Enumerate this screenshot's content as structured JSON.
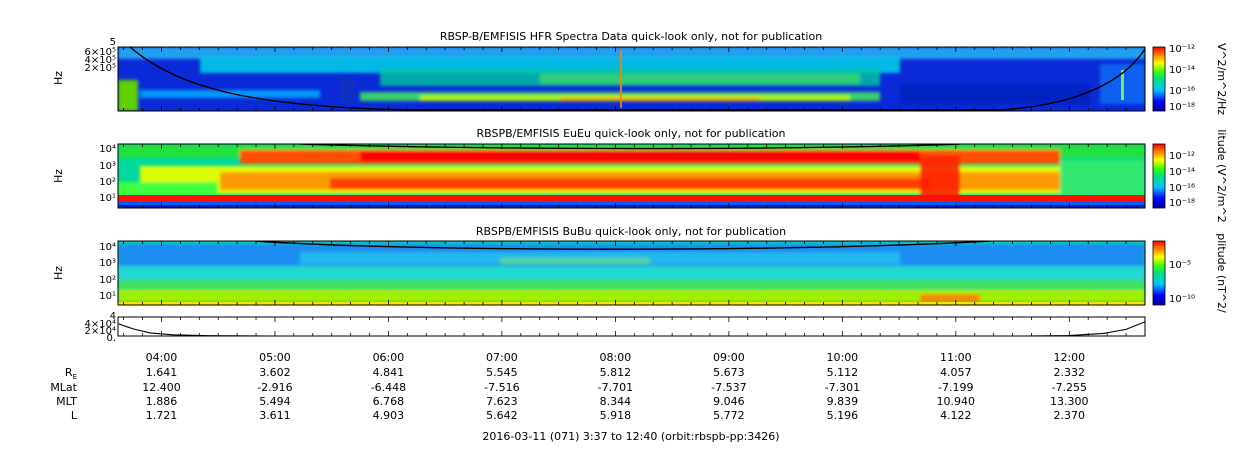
{
  "chart_data": [
    {
      "type": "heatmap",
      "title": "RBSP-B/EMFISIS  HFR Spectra Data quick-look only, not for publication",
      "ylabel": "Hz",
      "yticks": [
        "6×10⁵",
        "4×10⁵",
        "2×10⁵"
      ],
      "ytop_label": "5",
      "colorbar_label": "V^2/m^2/Hz",
      "colorbar_ticks": [
        "10⁻¹²",
        "10⁻¹⁴",
        "10⁻¹⁶",
        "10⁻¹⁸"
      ],
      "colorbar_range_exp": [
        -18,
        -12
      ]
    },
    {
      "type": "heatmap",
      "title": "RBSPB/EMFISIS  EuEu quick-look only, not for publication",
      "ylabel": "Hz",
      "yticks": [
        "10⁴",
        "10³",
        "10²",
        "10¹"
      ],
      "colorbar_label": "litude (V^2/m^2",
      "colorbar_ticks": [
        "10⁻¹²",
        "10⁻¹⁴",
        "10⁻¹⁶",
        "10⁻¹⁸"
      ],
      "colorbar_range_exp": [
        -18,
        -12
      ]
    },
    {
      "type": "heatmap",
      "title": "RBSPB/EMFISIS  BuBu quick-look only, not for publication",
      "ylabel": "Hz",
      "yticks": [
        "10⁴",
        "10³",
        "10²",
        "10¹"
      ],
      "colorbar_label": "plitude (nT^2/",
      "colorbar_ticks": [
        "10⁻⁵",
        "10⁻¹⁰"
      ],
      "colorbar_range_exp": [
        -12,
        -3
      ]
    },
    {
      "type": "line",
      "yticks": [
        "4×10⁴",
        "2×10⁴",
        "0."
      ],
      "ytop_label": "4",
      "ylim": [
        0,
        40000
      ],
      "x_hours": [
        3.617,
        3.75,
        3.9,
        4.1,
        4.4,
        5.0,
        6.0,
        7.0,
        8.0,
        9.0,
        10.0,
        11.0,
        11.6,
        12.0,
        12.3,
        12.5,
        12.667
      ],
      "values": [
        26000,
        15000,
        6500,
        2500,
        600,
        80,
        10,
        5,
        5,
        5,
        5,
        10,
        40,
        900,
        5500,
        14000,
        30000
      ]
    }
  ],
  "time_axis": {
    "start_hour": 3.617,
    "end_hour": 12.667,
    "tick_hours": [
      4,
      5,
      6,
      7,
      8,
      9,
      10,
      11,
      12
    ],
    "tick_labels": [
      "04:00",
      "05:00",
      "06:00",
      "07:00",
      "08:00",
      "09:00",
      "10:00",
      "11:00",
      "12:00"
    ]
  },
  "ephemeris": [
    {
      "label": "R",
      "sub": "E",
      "values": [
        "1.641",
        "3.602",
        "4.841",
        "5.545",
        "5.812",
        "5.673",
        "5.112",
        "4.057",
        "2.332"
      ]
    },
    {
      "label": "MLat",
      "sub": "",
      "values": [
        "12.400",
        "-2.916",
        "-6.448",
        "-7.516",
        "-7.701",
        "-7.537",
        "-7.301",
        "-7.199",
        "-7.255"
      ]
    },
    {
      "label": "MLT",
      "sub": "",
      "values": [
        "1.886",
        "5.494",
        "6.768",
        "7.623",
        "8.344",
        "9.046",
        "9.839",
        "10.940",
        "13.300"
      ]
    },
    {
      "label": "L",
      "sub": "",
      "values": [
        "1.721",
        "3.611",
        "4.903",
        "5.642",
        "5.918",
        "5.772",
        "5.196",
        "4.122",
        "2.370"
      ]
    }
  ],
  "caption": "2016-03-11 (071) 3:37 to 12:40 (orbit:rbspb-pp:3426)"
}
